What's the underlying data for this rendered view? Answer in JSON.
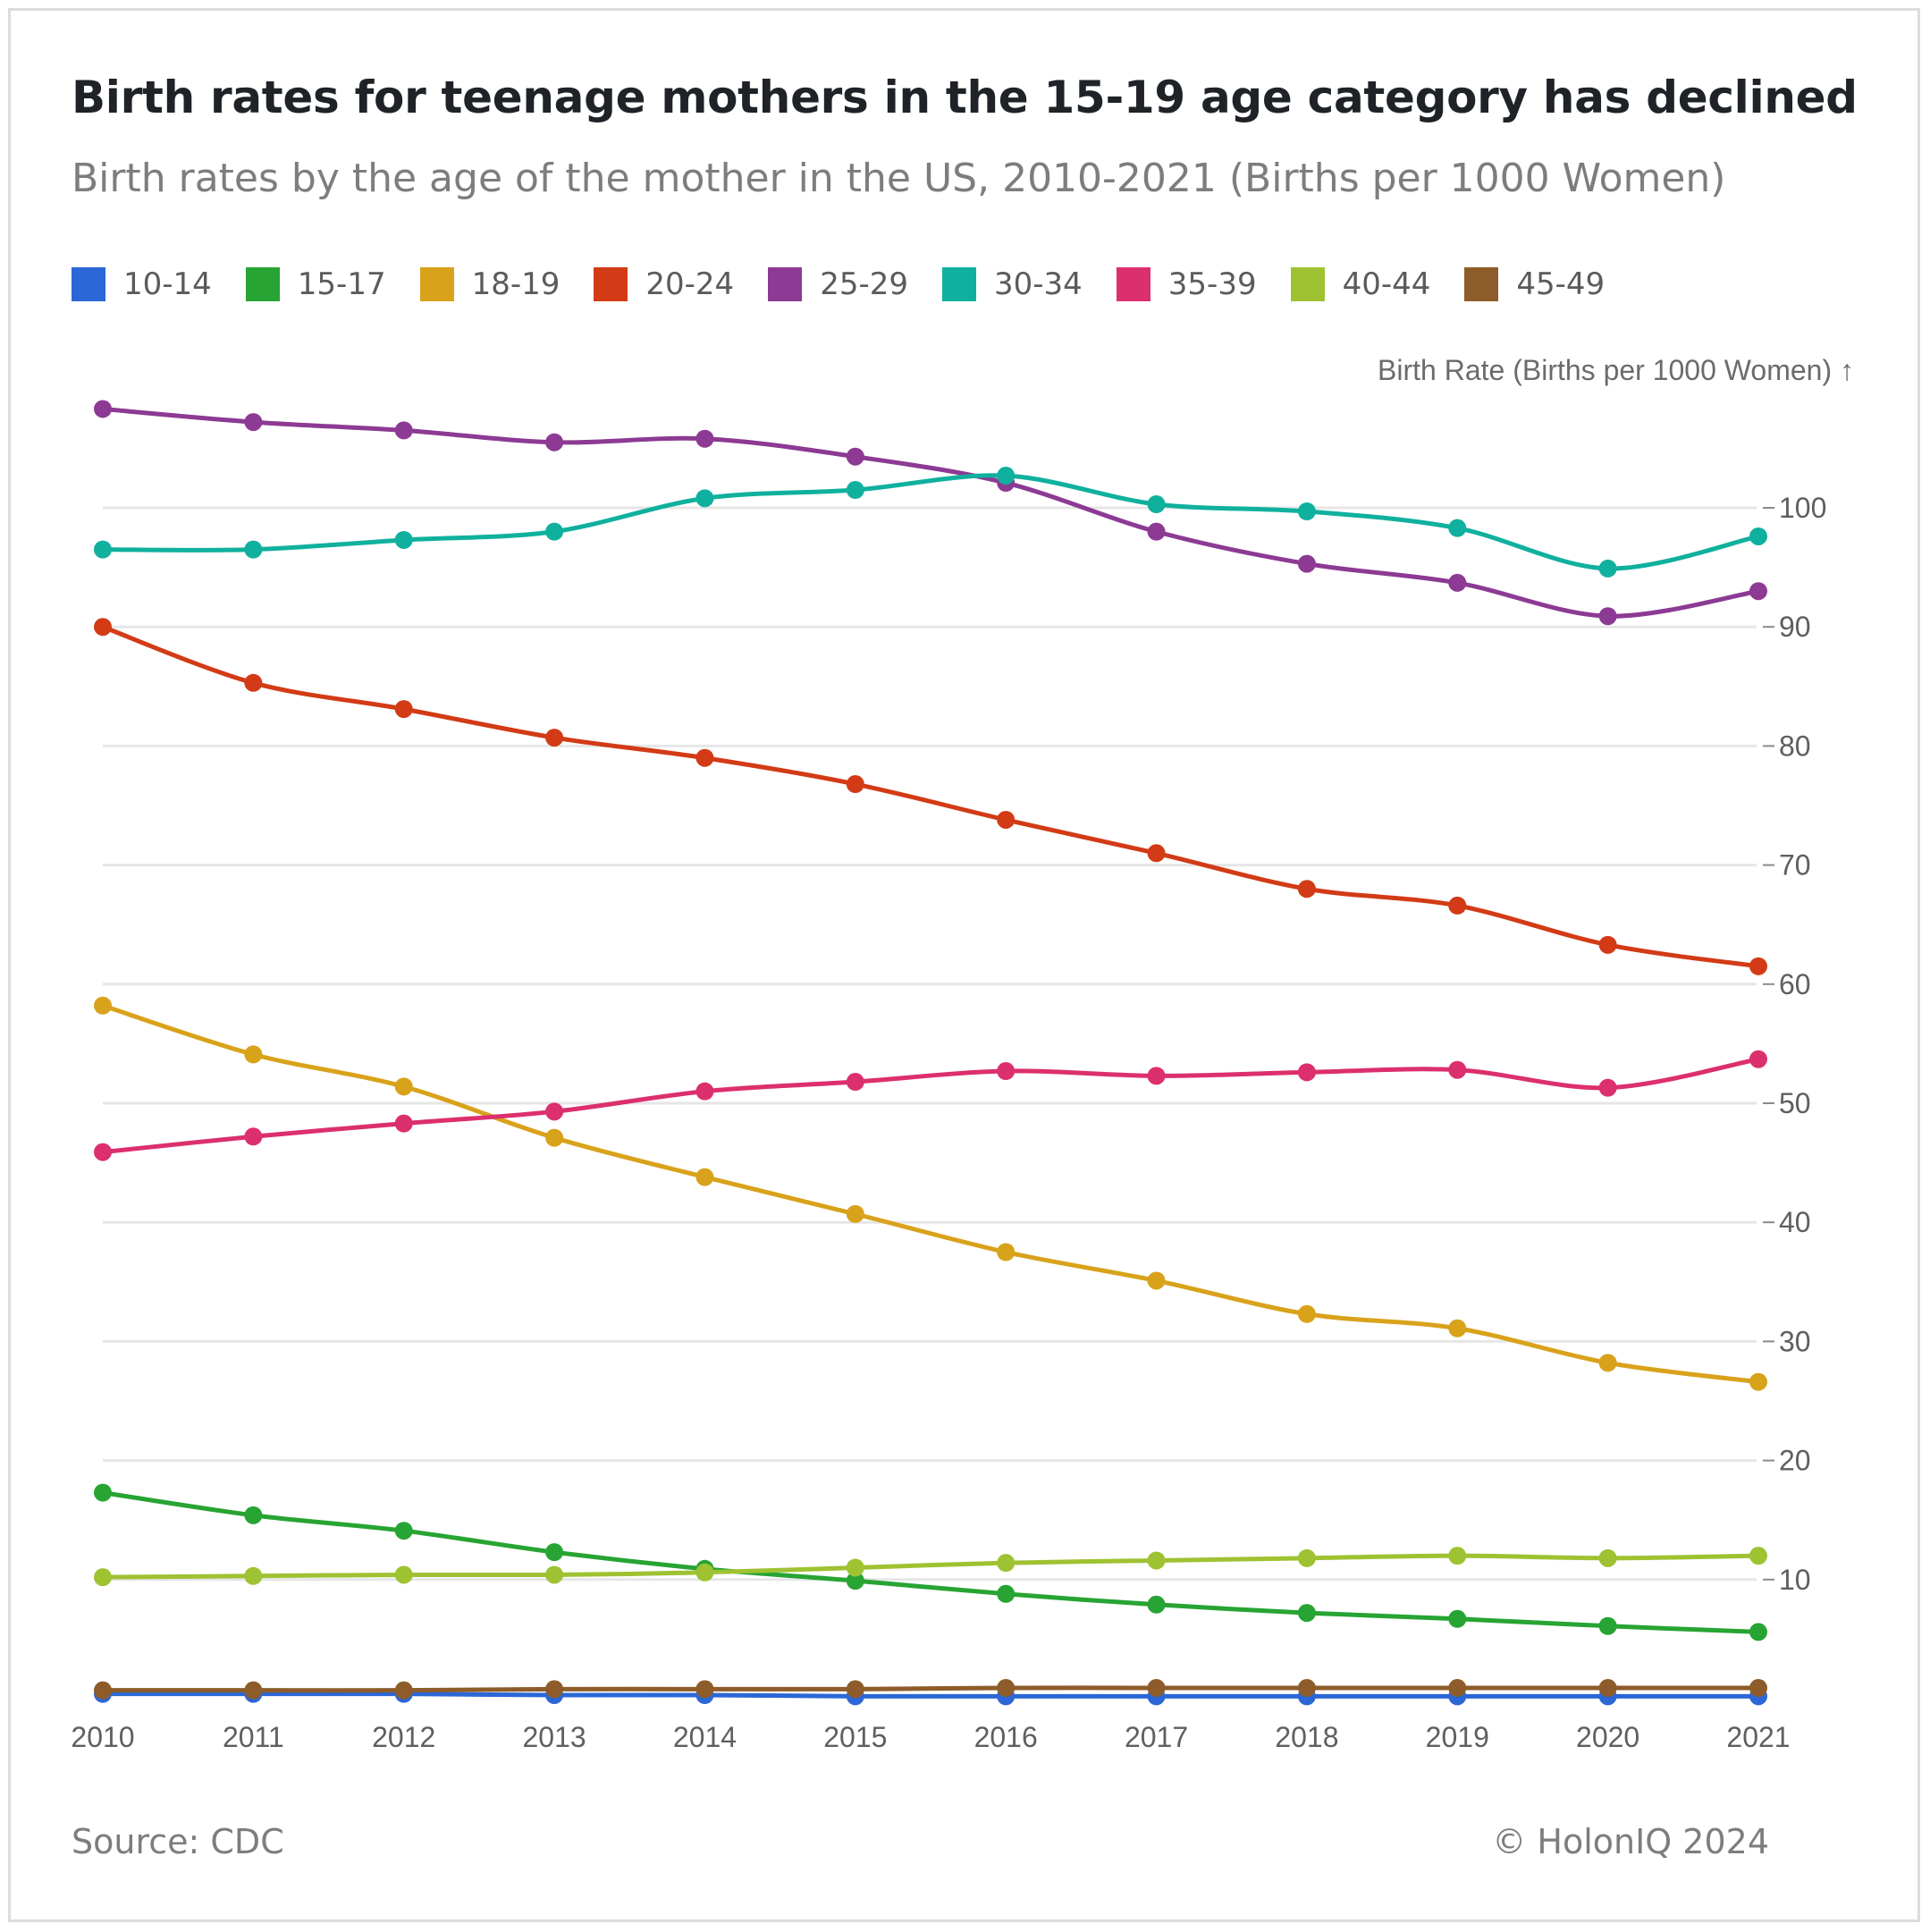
{
  "title": "Birth rates for teenage mothers in the 15-19 age category has declined",
  "subtitle": "Birth rates by the age of the mother in the US, 2010-2021 (Births per 1000 Women)",
  "footer": {
    "source": "Source: CDC",
    "copyright": "© HolonIQ 2024"
  },
  "chart_data": {
    "type": "line",
    "x": [
      2010,
      2011,
      2012,
      2013,
      2014,
      2015,
      2016,
      2017,
      2018,
      2019,
      2020,
      2021
    ],
    "ylabel": "Birth Rate (Births per 1000 Women) ↑",
    "ylim": [
      0,
      108
    ],
    "yticks": [
      10,
      20,
      30,
      40,
      50,
      60,
      70,
      80,
      90,
      100
    ],
    "grid": true,
    "legend_position": "top-left",
    "series": [
      {
        "name": "10-14",
        "color": "#2b67d6",
        "values": [
          0.4,
          0.4,
          0.4,
          0.3,
          0.3,
          0.2,
          0.2,
          0.2,
          0.2,
          0.2,
          0.2,
          0.2
        ]
      },
      {
        "name": "15-17",
        "color": "#27a433",
        "values": [
          17.3,
          15.4,
          14.1,
          12.3,
          10.9,
          9.9,
          8.8,
          7.9,
          7.2,
          6.7,
          6.1,
          5.6
        ]
      },
      {
        "name": "18-19",
        "color": "#d9a21b",
        "values": [
          58.2,
          54.1,
          51.4,
          47.1,
          43.8,
          40.7,
          37.5,
          35.1,
          32.3,
          31.1,
          28.2,
          26.6
        ]
      },
      {
        "name": "20-24",
        "color": "#d23b16",
        "values": [
          90.0,
          85.3,
          83.1,
          80.7,
          79.0,
          76.8,
          73.8,
          71.0,
          68.0,
          66.6,
          63.3,
          61.5
        ]
      },
      {
        "name": "25-29",
        "color": "#8c3a94",
        "values": [
          108.3,
          107.2,
          106.5,
          105.5,
          105.8,
          104.3,
          102.1,
          98.0,
          95.3,
          93.7,
          90.9,
          93.0
        ]
      },
      {
        "name": "30-34",
        "color": "#10b09e",
        "values": [
          96.5,
          96.5,
          97.3,
          98.0,
          100.8,
          101.5,
          102.7,
          100.3,
          99.7,
          98.3,
          94.9,
          97.6
        ]
      },
      {
        "name": "35-39",
        "color": "#dc2f6e",
        "values": [
          45.9,
          47.2,
          48.3,
          49.3,
          51.0,
          51.8,
          52.7,
          52.3,
          52.6,
          52.8,
          51.3,
          53.7
        ]
      },
      {
        "name": "40-44",
        "color": "#9ec232",
        "values": [
          10.2,
          10.3,
          10.4,
          10.4,
          10.6,
          11.0,
          11.4,
          11.6,
          11.8,
          12.0,
          11.8,
          12.0
        ]
      },
      {
        "name": "45-49",
        "color": "#8e5c2a",
        "values": [
          0.7,
          0.7,
          0.7,
          0.8,
          0.8,
          0.8,
          0.9,
          0.9,
          0.9,
          0.9,
          0.9,
          0.9
        ]
      }
    ]
  }
}
